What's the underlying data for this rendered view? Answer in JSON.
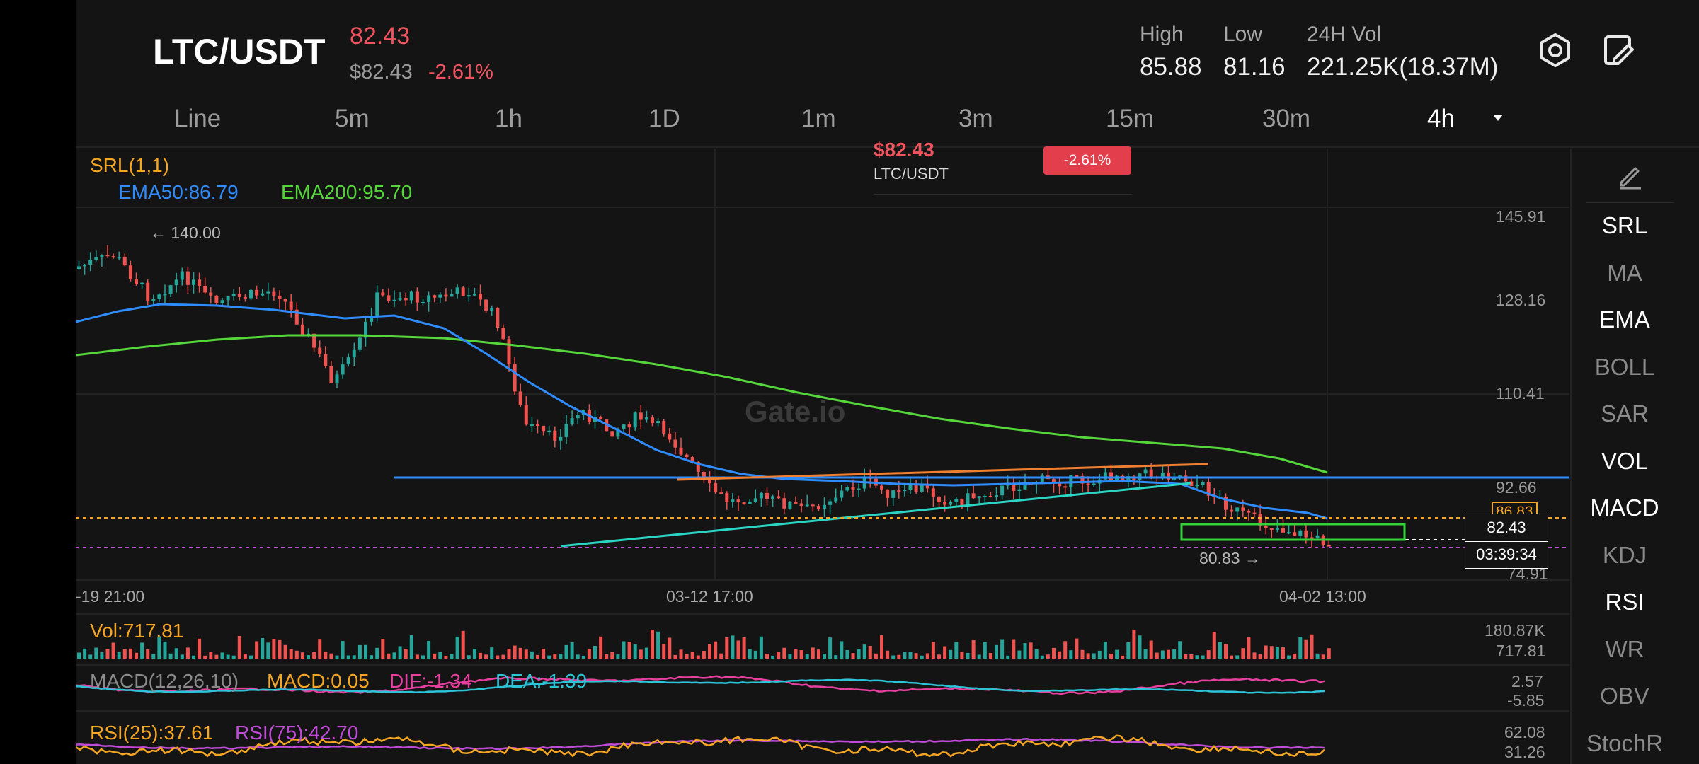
{
  "header": {
    "pair": "LTC/USDT",
    "price": "82.43",
    "price_usd": "$82.43",
    "change": "-2.61%",
    "high_label": "High",
    "high_value": "85.88",
    "low_label": "Low",
    "low_value": "81.16",
    "vol_label": "24H Vol",
    "vol_value": "221.25K(18.37M)",
    "icons": [
      "settings-hex-icon",
      "edit-window-icon"
    ]
  },
  "timeframes": [
    "Line",
    "5m",
    "1h",
    "1D",
    "1m",
    "3m",
    "15m",
    "30m"
  ],
  "timeframe_active": "4h",
  "tooltip": {
    "price": "$82.43",
    "pair": "LTC/USDT",
    "change": "-2.61%"
  },
  "indicators": {
    "srl": "SRL(1,1)",
    "ema50": "EMA50:86.79",
    "ema200": "EMA200:95.70"
  },
  "watermark": "Gate.io",
  "price_axis": [
    "145.91",
    "128.16",
    "110.41",
    "92.66",
    "86.83",
    "74.91"
  ],
  "annotations": {
    "high": "← 140.00",
    "low": "80.83 →"
  },
  "current": {
    "price": "82.43",
    "countdown": "03:39:34"
  },
  "dates": [
    "-19 21:00",
    "03-12 17:00",
    "04-02 13:00"
  ],
  "volume": {
    "label": "Vol:717.81",
    "axis_top": "180.87K",
    "axis_bottom": "717.81"
  },
  "macd": {
    "label": "MACD(12,26,10)",
    "macd": "MACD:0.05",
    "dif": "DIF:-1.34",
    "dea": "DEA:-1.39",
    "axis_top": "2.57",
    "axis_bottom": "-5.85"
  },
  "rsi": {
    "rsi25": "RSI(25):37.61",
    "rsi75": "RSI(75):42.70",
    "axis_top": "62.08",
    "axis_bottom": "31.26"
  },
  "right_rail": {
    "edit_icon": "pencil-icon",
    "items": [
      {
        "label": "SRL",
        "active": true
      },
      {
        "label": "MA",
        "active": false
      },
      {
        "label": "EMA",
        "active": true
      },
      {
        "label": "BOLL",
        "active": false
      },
      {
        "label": "SAR",
        "active": false
      },
      {
        "label": "VOL",
        "active": true
      },
      {
        "label": "MACD",
        "active": true
      },
      {
        "label": "KDJ",
        "active": false
      },
      {
        "label": "RSI",
        "active": true
      },
      {
        "label": "WR",
        "active": false
      },
      {
        "label": "OBV",
        "active": false
      },
      {
        "label": "StochR",
        "active": false
      }
    ]
  },
  "colors": {
    "up": "#26a69a",
    "down": "#ef5350",
    "ema50": "#2f8cff",
    "ema200": "#55d63a",
    "srl": "#f5a623",
    "rsi25": "#f5a623",
    "rsi75": "#c04bd8",
    "dif": "#e83fa0",
    "dea": "#2bc4d8"
  }
}
